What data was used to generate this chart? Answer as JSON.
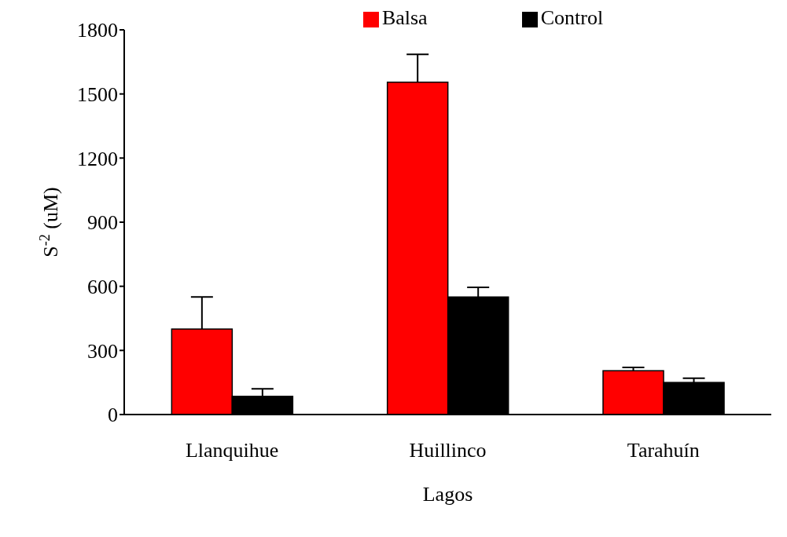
{
  "chart_data": {
    "type": "bar",
    "xlabel": "Lagos",
    "ylabel": "S$^{-2}$ (uM)",
    "categories": [
      "Llanquihue",
      "Huillinco",
      "Tarahuín"
    ],
    "series": [
      {
        "name": "Balsa",
        "color": "#ff0000",
        "values": [
          400,
          1555,
          205
        ],
        "errors": [
          [
            400,
            550
          ],
          [
            1555,
            1685
          ],
          [
            205,
            220
          ]
        ]
      },
      {
        "name": "Control",
        "color": "#000000",
        "values": [
          85,
          550,
          150
        ],
        "errors": [
          [
            85,
            120
          ],
          [
            550,
            595
          ],
          [
            150,
            170
          ]
        ]
      }
    ],
    "ylim": [
      0,
      1800
    ],
    "yticks": [
      0,
      300,
      600,
      900,
      1200,
      1500,
      1800
    ],
    "grid": false,
    "legend": "top"
  }
}
